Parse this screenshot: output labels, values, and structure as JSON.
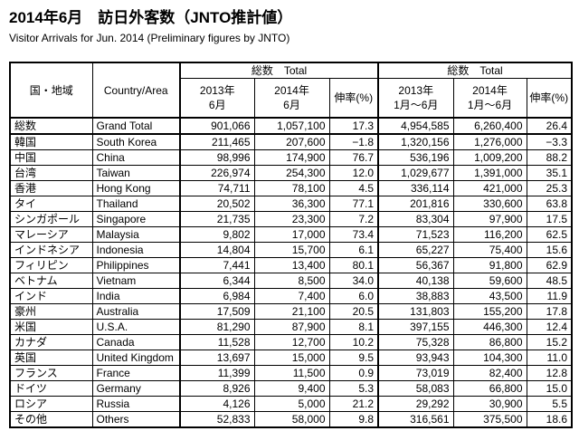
{
  "title": "2014年6月　訪日外客数（JNTO推計値）",
  "subtitle": "Visitor Arrivals for Jun. 2014 (Preliminary figures by JNTO)",
  "table": {
    "header": {
      "country_jp": "国・地域",
      "country_en": "Country/Area",
      "group_total_1": "総数　Total",
      "group_total_2": "総数　Total",
      "col_jun2013": [
        "2013年",
        "6月"
      ],
      "col_jun2014": [
        "2014年",
        "6月"
      ],
      "col_growth_jun": "伸率(%)",
      "col_h1_2013": [
        "2013年",
        "1月～6月"
      ],
      "col_h1_2014": [
        "2014年",
        "1月～6月"
      ],
      "col_growth_h1": "伸率(%)"
    },
    "rows": [
      {
        "jp": "総数",
        "en": "Grand Total",
        "jun2013": "901,066",
        "jun2014": "1,057,100",
        "growth_jun": "17.3",
        "h1_2013": "4,954,585",
        "h1_2014": "6,260,400",
        "growth_h1": "26.4"
      },
      {
        "jp": "韓国",
        "en": "South Korea",
        "jun2013": "211,465",
        "jun2014": "207,600",
        "growth_jun": "−1.8",
        "h1_2013": "1,320,156",
        "h1_2014": "1,276,000",
        "growth_h1": "−3.3"
      },
      {
        "jp": "中国",
        "en": "China",
        "jun2013": "98,996",
        "jun2014": "174,900",
        "growth_jun": "76.7",
        "h1_2013": "536,196",
        "h1_2014": "1,009,200",
        "growth_h1": "88.2"
      },
      {
        "jp": "台湾",
        "en": "Taiwan",
        "jun2013": "226,974",
        "jun2014": "254,300",
        "growth_jun": "12.0",
        "h1_2013": "1,029,677",
        "h1_2014": "1,391,000",
        "growth_h1": "35.1"
      },
      {
        "jp": "香港",
        "en": "Hong Kong",
        "jun2013": "74,711",
        "jun2014": "78,100",
        "growth_jun": "4.5",
        "h1_2013": "336,114",
        "h1_2014": "421,000",
        "growth_h1": "25.3"
      },
      {
        "jp": "タイ",
        "en": "Thailand",
        "jun2013": "20,502",
        "jun2014": "36,300",
        "growth_jun": "77.1",
        "h1_2013": "201,816",
        "h1_2014": "330,600",
        "growth_h1": "63.8"
      },
      {
        "jp": "シンガポール",
        "en": "Singapore",
        "jun2013": "21,735",
        "jun2014": "23,300",
        "growth_jun": "7.2",
        "h1_2013": "83,304",
        "h1_2014": "97,900",
        "growth_h1": "17.5"
      },
      {
        "jp": "マレーシア",
        "en": "Malaysia",
        "jun2013": "9,802",
        "jun2014": "17,000",
        "growth_jun": "73.4",
        "h1_2013": "71,523",
        "h1_2014": "116,200",
        "growth_h1": "62.5"
      },
      {
        "jp": "インドネシア",
        "en": "Indonesia",
        "jun2013": "14,804",
        "jun2014": "15,700",
        "growth_jun": "6.1",
        "h1_2013": "65,227",
        "h1_2014": "75,400",
        "growth_h1": "15.6"
      },
      {
        "jp": "フィリピン",
        "en": "Philippines",
        "jun2013": "7,441",
        "jun2014": "13,400",
        "growth_jun": "80.1",
        "h1_2013": "56,367",
        "h1_2014": "91,800",
        "growth_h1": "62.9"
      },
      {
        "jp": "ベトナム",
        "en": "Vietnam",
        "jun2013": "6,344",
        "jun2014": "8,500",
        "growth_jun": "34.0",
        "h1_2013": "40,138",
        "h1_2014": "59,600",
        "growth_h1": "48.5"
      },
      {
        "jp": "インド",
        "en": "India",
        "jun2013": "6,984",
        "jun2014": "7,400",
        "growth_jun": "6.0",
        "h1_2013": "38,883",
        "h1_2014": "43,500",
        "growth_h1": "11.9"
      },
      {
        "jp": "豪州",
        "en": "Australia",
        "jun2013": "17,509",
        "jun2014": "21,100",
        "growth_jun": "20.5",
        "h1_2013": "131,803",
        "h1_2014": "155,200",
        "growth_h1": "17.8"
      },
      {
        "jp": "米国",
        "en": "U.S.A.",
        "jun2013": "81,290",
        "jun2014": "87,900",
        "growth_jun": "8.1",
        "h1_2013": "397,155",
        "h1_2014": "446,300",
        "growth_h1": "12.4"
      },
      {
        "jp": "カナダ",
        "en": "Canada",
        "jun2013": "11,528",
        "jun2014": "12,700",
        "growth_jun": "10.2",
        "h1_2013": "75,328",
        "h1_2014": "86,800",
        "growth_h1": "15.2"
      },
      {
        "jp": "英国",
        "en": "United Kingdom",
        "jun2013": "13,697",
        "jun2014": "15,000",
        "growth_jun": "9.5",
        "h1_2013": "93,943",
        "h1_2014": "104,300",
        "growth_h1": "11.0"
      },
      {
        "jp": "フランス",
        "en": "France",
        "jun2013": "11,399",
        "jun2014": "11,500",
        "growth_jun": "0.9",
        "h1_2013": "73,019",
        "h1_2014": "82,400",
        "growth_h1": "12.8"
      },
      {
        "jp": "ドイツ",
        "en": "Germany",
        "jun2013": "8,926",
        "jun2014": "9,400",
        "growth_jun": "5.3",
        "h1_2013": "58,083",
        "h1_2014": "66,800",
        "growth_h1": "15.0"
      },
      {
        "jp": "ロシア",
        "en": "Russia",
        "jun2013": "4,126",
        "jun2014": "5,000",
        "growth_jun": "21.2",
        "h1_2013": "29,292",
        "h1_2014": "30,900",
        "growth_h1": "5.5"
      },
      {
        "jp": "その他",
        "en": "Others",
        "jun2013": "52,833",
        "jun2014": "58,000",
        "growth_jun": "9.8",
        "h1_2013": "316,561",
        "h1_2014": "375,500",
        "growth_h1": "18.6"
      }
    ]
  }
}
